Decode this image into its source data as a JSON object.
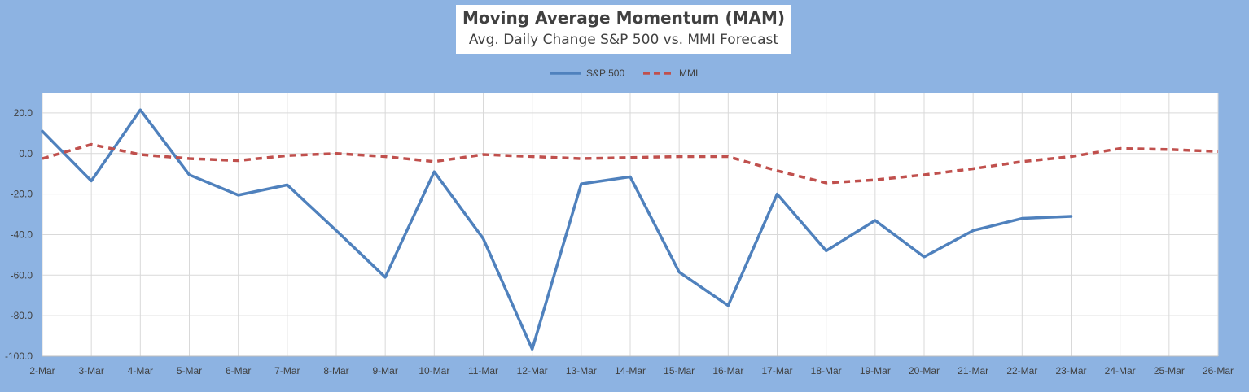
{
  "chart_data": {
    "type": "line",
    "title": "Moving Average Momentum (MAM)",
    "subtitle": "Avg. Daily Change S&P 500 vs. MMI Forecast",
    "xlabel": "",
    "ylabel": "",
    "categories": [
      "2-Mar",
      "3-Mar",
      "4-Mar",
      "5-Mar",
      "6-Mar",
      "7-Mar",
      "8-Mar",
      "9-Mar",
      "10-Mar",
      "11-Mar",
      "12-Mar",
      "13-Mar",
      "14-Mar",
      "15-Mar",
      "16-Mar",
      "17-Mar",
      "18-Mar",
      "19-Mar",
      "20-Mar",
      "21-Mar",
      "22-Mar",
      "23-Mar",
      "24-Mar",
      "25-Mar",
      "26-Mar"
    ],
    "ylim": [
      -100,
      30
    ],
    "yticks": [
      20,
      0,
      -20,
      -40,
      -60,
      -80,
      -100
    ],
    "ytick_labels": [
      "20.0",
      "0.0",
      "-20.0",
      "-40.0",
      "-60.0",
      "-80.0",
      "-100.0"
    ],
    "grid": true,
    "legend_position": "top-center",
    "series": [
      {
        "name": "S&P 500",
        "color": "#4F81BD",
        "style": "solid",
        "values": [
          11,
          -13.5,
          21.5,
          -10.5,
          -20.5,
          -15.5,
          -38,
          -61,
          -9,
          -42,
          -96.5,
          -15,
          -11.5,
          -58.5,
          -75,
          -20,
          -48,
          -33,
          -51,
          -38,
          -32,
          -31,
          null,
          null,
          null
        ]
      },
      {
        "name": "MMI",
        "color": "#C0504D",
        "style": "dashed",
        "values": [
          -2.5,
          4.5,
          -0.5,
          -2.5,
          -3.5,
          -1,
          0,
          -1.5,
          -4,
          -0.5,
          -1.5,
          -2.5,
          -2,
          -1.5,
          -1.5,
          -8.5,
          -14.5,
          -13,
          -10.5,
          -7.5,
          -4,
          -1.5,
          2.5,
          2,
          1
        ]
      }
    ]
  }
}
